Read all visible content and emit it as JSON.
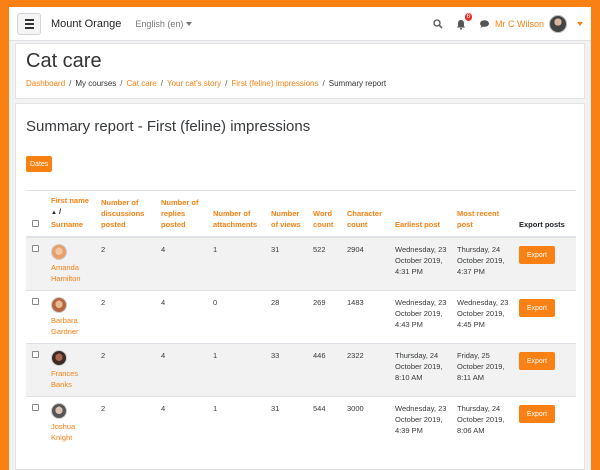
{
  "navbar": {
    "site_name": "Mount Orange",
    "language": "English (en)",
    "notification_count": "6",
    "user_name": "Mr C Wilson"
  },
  "header": {
    "course_title": "Cat care",
    "breadcrumb": [
      "Dashboard",
      "My courses",
      "Cat care",
      "Your cat's story",
      "First (feline) impressions",
      "Summary report"
    ]
  },
  "report": {
    "title": "Summary report - First (feline) impressions",
    "dates_button": "Dates",
    "columns": {
      "first_name": "First name",
      "slash": "/",
      "surname": "Surname",
      "discussions": "Number of discussions posted",
      "replies": "Number of replies posted",
      "attachments": "Number of attachments",
      "views": "Number of views",
      "words": "Word count",
      "characters": "Character count",
      "earliest": "Earliest post",
      "recent": "Most recent post",
      "export": "Export posts"
    },
    "rows": [
      {
        "first": "Amanda",
        "last": "Hamilton",
        "discussions": "2",
        "replies": "4",
        "attachments": "1",
        "views": "31",
        "words": "522",
        "characters": "2904",
        "earliest": "Wednesday, 23 October 2019, 4:31 PM",
        "recent": "Thursday, 24 October 2019, 4:37 PM",
        "export": "Export",
        "avatar_color": "#e8a06a"
      },
      {
        "first": "Barbara",
        "last": "Gardner",
        "discussions": "2",
        "replies": "4",
        "attachments": "0",
        "views": "28",
        "words": "269",
        "characters": "1483",
        "earliest": "Wednesday, 23 October 2019, 4:43 PM",
        "recent": "Wednesday, 23 October 2019, 4:45 PM",
        "export": "Export",
        "avatar_color": "#b5653f"
      },
      {
        "first": "Frances",
        "last": "Banks",
        "discussions": "2",
        "replies": "4",
        "attachments": "1",
        "views": "33",
        "words": "446",
        "characters": "2322",
        "earliest": "Thursday, 24 October 2019, 8:10 AM",
        "recent": "Friday, 25 October 2019, 8:11 AM",
        "export": "Export",
        "avatar_color": "#5a3a2e"
      },
      {
        "first": "Joshua",
        "last": "Knight",
        "discussions": "2",
        "replies": "4",
        "attachments": "1",
        "views": "31",
        "words": "544",
        "characters": "3000",
        "earliest": "Wednesday, 23 October 2019, 4:39 PM",
        "recent": "Thursday, 24 October 2019, 8:06 AM",
        "export": "Export",
        "avatar_color": "#555555"
      }
    ]
  },
  "colors": {
    "brand": "#f98012",
    "background": "#f2f2f2"
  },
  "icons": [
    "menu-icon",
    "search-icon",
    "bell-icon",
    "chat-icon",
    "chevron-down-icon",
    "sort-up-icon"
  ]
}
